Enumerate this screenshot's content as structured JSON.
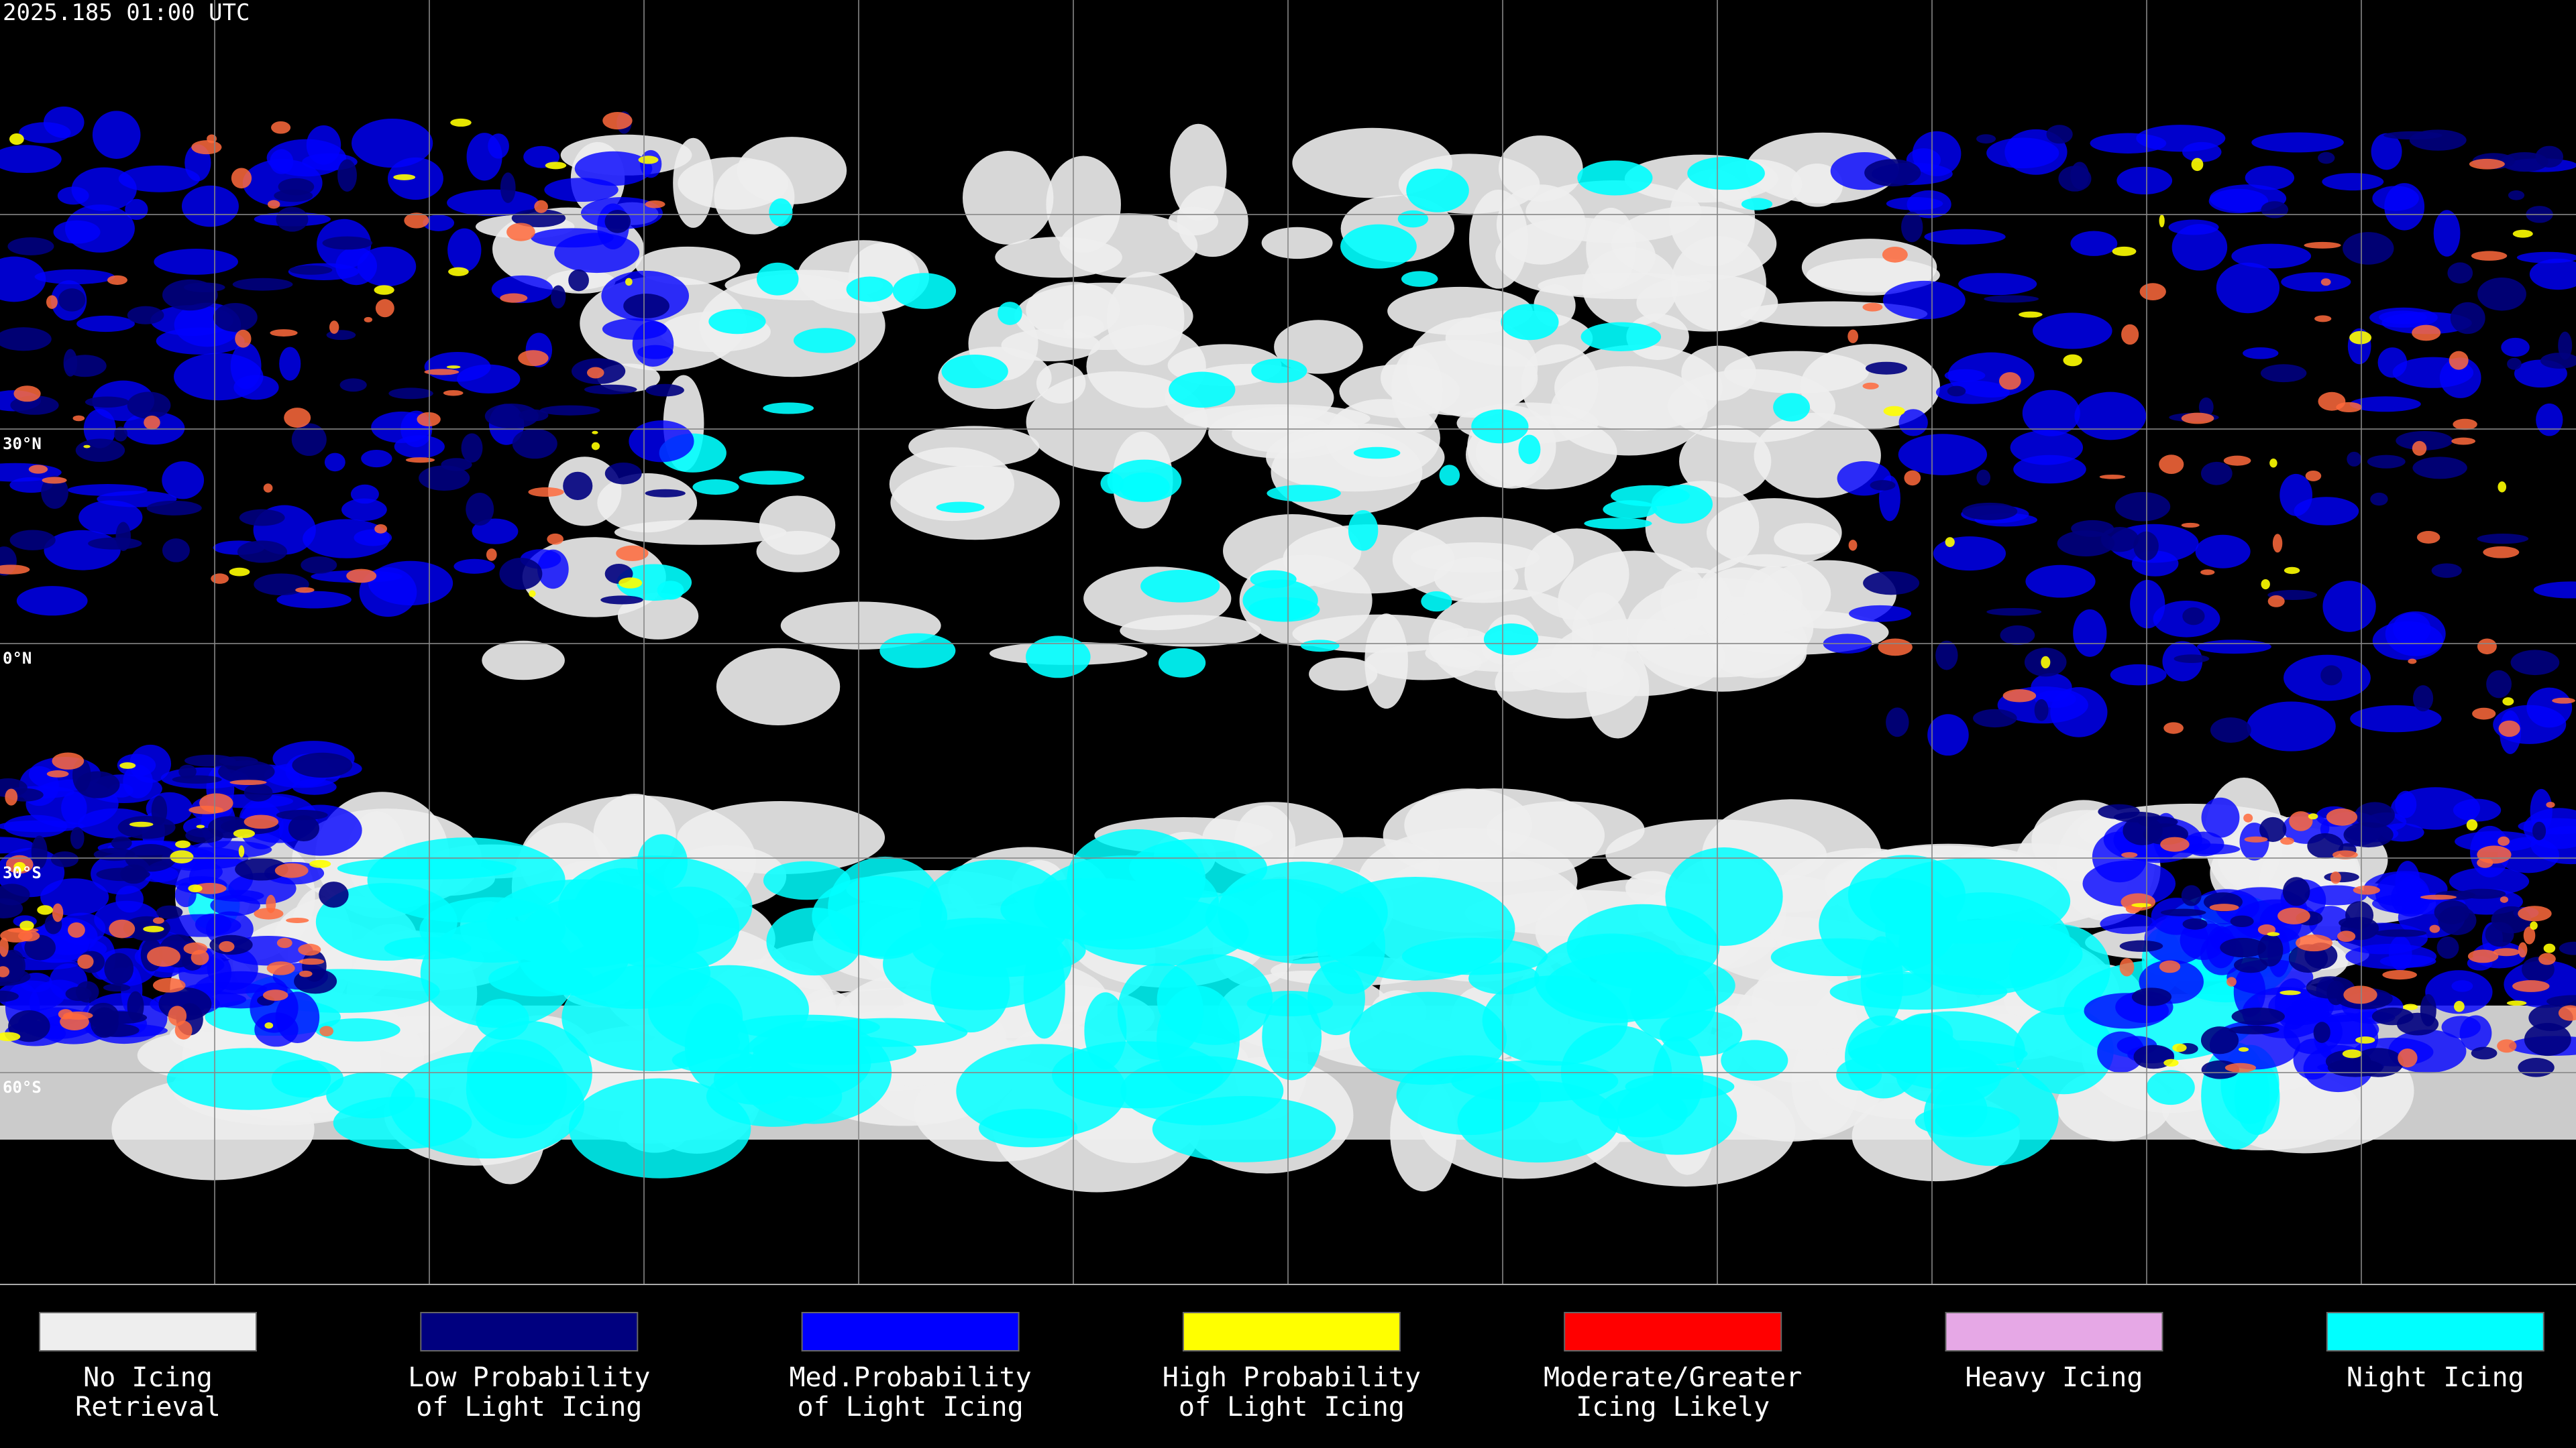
{
  "header": {
    "timestamp": "2025.185 01:00 UTC"
  },
  "latitude_labels": [
    "30°N",
    "0°N",
    "30°S",
    "60°S"
  ],
  "legend": [
    {
      "label": [
        "No Icing",
        "Retrieval"
      ],
      "color": "#eeeeee"
    },
    {
      "label": [
        "Low Probability",
        "of Light Icing"
      ],
      "color": "#00007f"
    },
    {
      "label": [
        "Med.Probability",
        "of Light Icing"
      ],
      "color": "#0000ff"
    },
    {
      "label": [
        "High Probability",
        "of Light Icing"
      ],
      "color": "#ffff00"
    },
    {
      "label": [
        "Moderate/Greater",
        "Icing Likely"
      ],
      "color": "#ff0000"
    },
    {
      "label": [
        "Heavy Icing"
      ],
      "color": "#e6a8e6"
    },
    {
      "label": [
        "Night Icing"
      ],
      "color": "#00ffff"
    }
  ]
}
